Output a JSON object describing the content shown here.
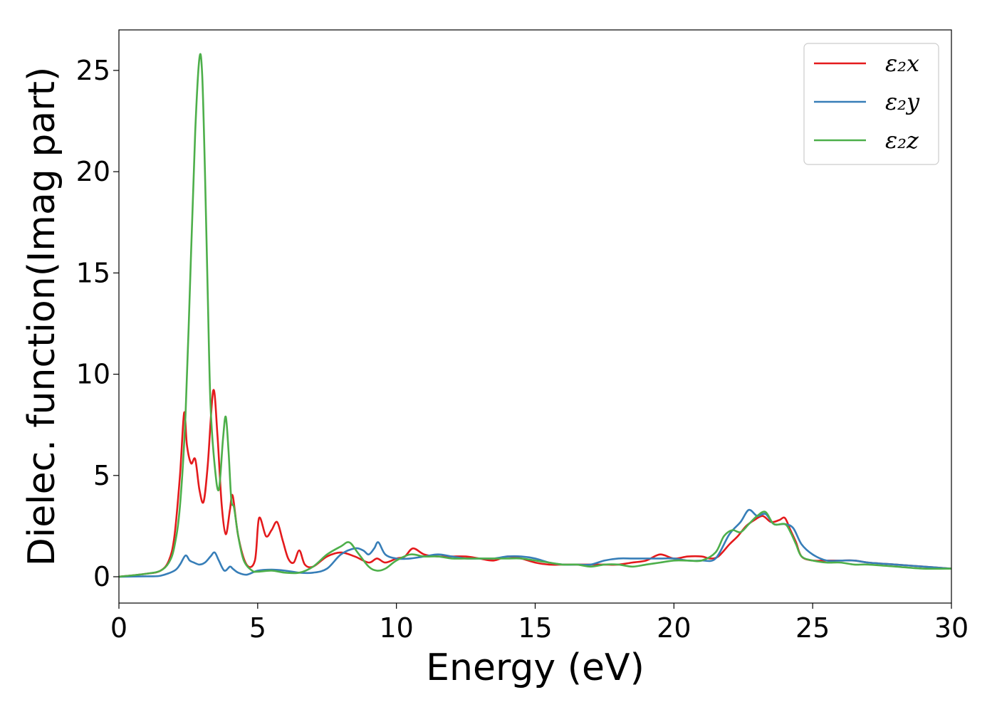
{
  "chart_data": {
    "type": "line",
    "xlabel": "Energy (eV)",
    "ylabel": "Dielec. function(Imag part)",
    "xlim": [
      0,
      30
    ],
    "ylim": [
      -1.3,
      27
    ],
    "xticks": [
      0,
      5,
      10,
      15,
      20,
      25,
      30
    ],
    "yticks": [
      0,
      5,
      10,
      15,
      20,
      25
    ],
    "grid": false,
    "legend_position": "top-right",
    "series": [
      {
        "name": "ε₂x",
        "color": "#e41a1c",
        "x": [
          0,
          1,
          1.5,
          1.8,
          2.0,
          2.2,
          2.35,
          2.45,
          2.6,
          2.75,
          2.9,
          3.05,
          3.2,
          3.4,
          3.55,
          3.7,
          3.85,
          4.0,
          4.1,
          4.3,
          4.6,
          4.9,
          5.05,
          5.3,
          5.5,
          5.7,
          5.9,
          6.1,
          6.3,
          6.5,
          6.7,
          7.0,
          7.5,
          8.0,
          8.5,
          9.0,
          9.3,
          9.6,
          10.0,
          10.3,
          10.6,
          11.0,
          11.5,
          12.0,
          12.5,
          13.0,
          13.5,
          14.0,
          14.5,
          15.0,
          15.5,
          16.0,
          16.5,
          17.0,
          17.5,
          18.0,
          18.5,
          19.0,
          19.5,
          20.0,
          20.5,
          21.0,
          21.3,
          21.6,
          22.0,
          22.3,
          22.6,
          22.9,
          23.2,
          23.5,
          23.8,
          24.0,
          24.2,
          24.4,
          24.6,
          25.0,
          25.5,
          26.0,
          26.5,
          27.0,
          28.0,
          29.0,
          30.0
        ],
        "y": [
          0,
          0.15,
          0.3,
          0.8,
          2.0,
          5.0,
          8.1,
          6.5,
          5.6,
          5.8,
          4.3,
          3.7,
          5.5,
          9.2,
          7.0,
          3.6,
          2.1,
          3.3,
          4.0,
          2.0,
          0.6,
          0.8,
          2.9,
          2.0,
          2.3,
          2.7,
          1.8,
          0.9,
          0.7,
          1.3,
          0.6,
          0.5,
          1.0,
          1.2,
          1.0,
          0.7,
          0.9,
          0.7,
          0.9,
          1.0,
          1.4,
          1.1,
          1.0,
          1.0,
          1.0,
          0.9,
          0.8,
          1.0,
          0.9,
          0.7,
          0.6,
          0.6,
          0.6,
          0.6,
          0.6,
          0.6,
          0.7,
          0.8,
          1.1,
          0.9,
          1.0,
          1.0,
          0.9,
          1.0,
          1.6,
          2.0,
          2.5,
          2.8,
          3.0,
          2.7,
          2.8,
          2.9,
          2.3,
          1.7,
          1.0,
          0.8,
          0.8,
          0.8,
          0.8,
          0.7,
          0.6,
          0.5,
          0.4
        ]
      },
      {
        "name": "ε₂y",
        "color": "#377eb8",
        "x": [
          0,
          1,
          1.5,
          2.0,
          2.2,
          2.4,
          2.55,
          2.7,
          2.9,
          3.1,
          3.3,
          3.45,
          3.6,
          3.8,
          4.0,
          4.1,
          4.3,
          4.6,
          5.0,
          5.5,
          6.0,
          6.5,
          7.0,
          7.5,
          8.0,
          8.5,
          8.8,
          9.0,
          9.2,
          9.35,
          9.6,
          10.0,
          10.5,
          11.0,
          11.5,
          12.0,
          12.5,
          13.0,
          13.5,
          14.0,
          14.5,
          15.0,
          15.5,
          16.0,
          16.5,
          17.0,
          17.5,
          18.0,
          18.5,
          19.0,
          19.5,
          20.0,
          20.5,
          21.0,
          21.5,
          22.0,
          22.4,
          22.7,
          23.0,
          23.3,
          23.6,
          24.0,
          24.3,
          24.6,
          25.0,
          25.5,
          26.0,
          26.5,
          27.0,
          28.0,
          29.0,
          30.0
        ],
        "y": [
          0,
          0.02,
          0.05,
          0.3,
          0.6,
          1.05,
          0.8,
          0.7,
          0.6,
          0.7,
          1.0,
          1.2,
          0.8,
          0.3,
          0.5,
          0.4,
          0.2,
          0.1,
          0.3,
          0.35,
          0.3,
          0.2,
          0.2,
          0.4,
          1.1,
          1.4,
          1.3,
          1.1,
          1.4,
          1.7,
          1.1,
          0.9,
          0.9,
          1.0,
          1.1,
          1.0,
          0.9,
          0.9,
          0.9,
          1.0,
          1.0,
          0.9,
          0.7,
          0.6,
          0.6,
          0.6,
          0.8,
          0.9,
          0.9,
          0.9,
          0.9,
          0.9,
          0.8,
          0.8,
          0.9,
          2.1,
          2.7,
          3.3,
          3.0,
          3.1,
          2.6,
          2.6,
          2.4,
          1.6,
          1.1,
          0.8,
          0.8,
          0.8,
          0.7,
          0.6,
          0.5,
          0.4
        ]
      },
      {
        "name": "ε₂z",
        "color": "#4daf4a",
        "x": [
          0,
          1,
          1.5,
          1.8,
          2.0,
          2.2,
          2.4,
          2.6,
          2.75,
          2.9,
          3.0,
          3.1,
          3.2,
          3.3,
          3.45,
          3.6,
          3.75,
          3.85,
          3.95,
          4.05,
          4.15,
          4.3,
          4.5,
          4.8,
          5.0,
          5.5,
          6.0,
          6.5,
          7.0,
          7.5,
          8.0,
          8.3,
          8.6,
          9.0,
          9.3,
          9.6,
          10.0,
          10.5,
          11.0,
          11.5,
          12.0,
          12.5,
          13.0,
          13.5,
          14.0,
          14.5,
          15.0,
          15.5,
          16.0,
          16.5,
          17.0,
          17.5,
          18.0,
          18.5,
          19.0,
          19.5,
          20.0,
          20.5,
          21.0,
          21.5,
          21.8,
          22.1,
          22.4,
          22.7,
          23.0,
          23.3,
          23.6,
          24.0,
          24.2,
          24.4,
          24.6,
          25.0,
          25.5,
          26.0,
          26.5,
          27.0,
          28.0,
          29.0,
          30.0
        ],
        "y": [
          0,
          0.15,
          0.3,
          0.7,
          1.5,
          3.5,
          8.0,
          16.0,
          22.0,
          25.6,
          24.8,
          20.0,
          14.0,
          8.5,
          5.5,
          4.3,
          6.8,
          7.9,
          6.2,
          3.8,
          3.4,
          2.0,
          0.8,
          0.3,
          0.25,
          0.3,
          0.2,
          0.2,
          0.5,
          1.1,
          1.5,
          1.7,
          1.2,
          0.5,
          0.3,
          0.4,
          0.8,
          1.1,
          1.0,
          1.0,
          0.9,
          0.9,
          0.9,
          0.9,
          0.9,
          0.9,
          0.8,
          0.7,
          0.6,
          0.6,
          0.5,
          0.6,
          0.6,
          0.5,
          0.6,
          0.7,
          0.8,
          0.8,
          0.8,
          1.2,
          2.0,
          2.3,
          2.2,
          2.6,
          3.0,
          3.2,
          2.6,
          2.6,
          2.2,
          1.6,
          1.0,
          0.8,
          0.7,
          0.7,
          0.6,
          0.6,
          0.5,
          0.4,
          0.4
        ]
      }
    ]
  }
}
